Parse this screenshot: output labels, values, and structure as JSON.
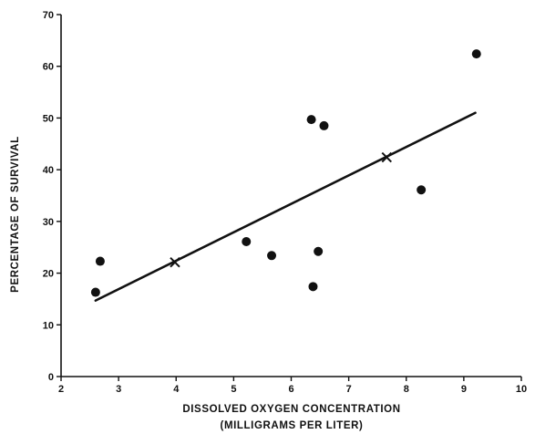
{
  "chart_data": {
    "type": "scatter",
    "title": "",
    "xlabel": "DISSOLVED OXYGEN CONCENTRATION",
    "xlabel_sub": "(MILLIGRAMS PER LITER)",
    "ylabel": "PERCENTAGE OF SURVIVAL",
    "xlim": [
      2,
      10
    ],
    "ylim": [
      0,
      70
    ],
    "xticks": [
      "2",
      "3",
      "4",
      "5",
      "6",
      "7",
      "8",
      "9",
      "10"
    ],
    "yticks": [
      "0",
      "10",
      "20",
      "30",
      "40",
      "50",
      "60",
      "70"
    ],
    "grid": false,
    "legend": "none",
    "points": [
      {
        "x": 2.6,
        "y": 16.3
      },
      {
        "x": 2.68,
        "y": 22.3
      },
      {
        "x": 5.22,
        "y": 26.1
      },
      {
        "x": 5.66,
        "y": 23.4
      },
      {
        "x": 6.35,
        "y": 49.7
      },
      {
        "x": 6.38,
        "y": 17.4
      },
      {
        "x": 6.47,
        "y": 24.2
      },
      {
        "x": 6.57,
        "y": 48.5
      },
      {
        "x": 8.26,
        "y": 36.1
      },
      {
        "x": 9.22,
        "y": 62.4
      }
    ],
    "fit_line": {
      "x": [
        2.6,
        9.2
      ],
      "y": [
        14.7,
        51.0
      ]
    },
    "fit_markers": [
      {
        "x": 3.98,
        "y": 22.1
      },
      {
        "x": 7.66,
        "y": 42.4
      }
    ],
    "colors": {
      "ink": "#111111",
      "background": "#ffffff"
    }
  }
}
